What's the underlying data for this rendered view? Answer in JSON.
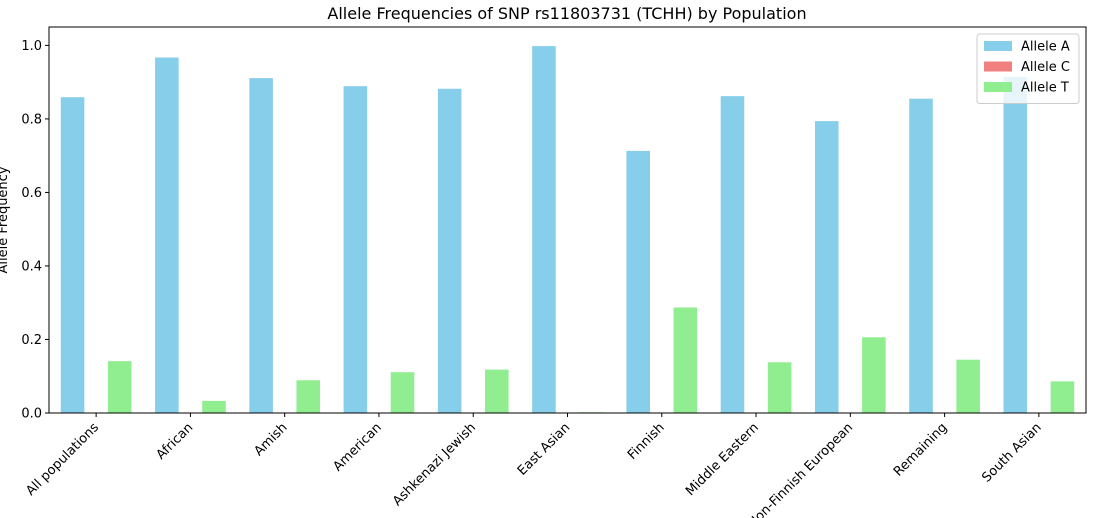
{
  "chart_data": {
    "type": "bar",
    "title": "Allele Frequencies of SNP rs11803731 (TCHH) by Population",
    "xlabel": "",
    "ylabel": "Allele Frequency",
    "ylim": [
      0,
      1.05
    ],
    "yticks": [
      "0.0",
      "0.2",
      "0.4",
      "0.6",
      "0.8",
      "1.0"
    ],
    "ytick_values": [
      0.0,
      0.2,
      0.4,
      0.6,
      0.8,
      1.0
    ],
    "grid": false,
    "legend_position": "top-right",
    "categories": [
      "All populations",
      "African",
      "Amish",
      "American",
      "Ashkenazi Jewish",
      "East Asian",
      "Finnish",
      "Middle Eastern",
      "Non-Finnish European",
      "Remaining",
      "South Asian"
    ],
    "series": [
      {
        "name": "Allele A",
        "color": "#87ceeb",
        "values": [
          0.859,
          0.967,
          0.911,
          0.889,
          0.882,
          0.998,
          0.713,
          0.862,
          0.794,
          0.855,
          0.914
        ]
      },
      {
        "name": "Allele C",
        "color": "#f08080",
        "values": [
          0.0,
          0.0,
          0.0,
          0.0,
          0.0,
          0.0,
          0.0,
          0.0,
          0.0,
          0.0,
          0.0
        ]
      },
      {
        "name": "Allele T",
        "color": "#90ee90",
        "values": [
          0.141,
          0.033,
          0.089,
          0.111,
          0.118,
          0.002,
          0.287,
          0.138,
          0.206,
          0.145,
          0.086
        ]
      }
    ]
  }
}
